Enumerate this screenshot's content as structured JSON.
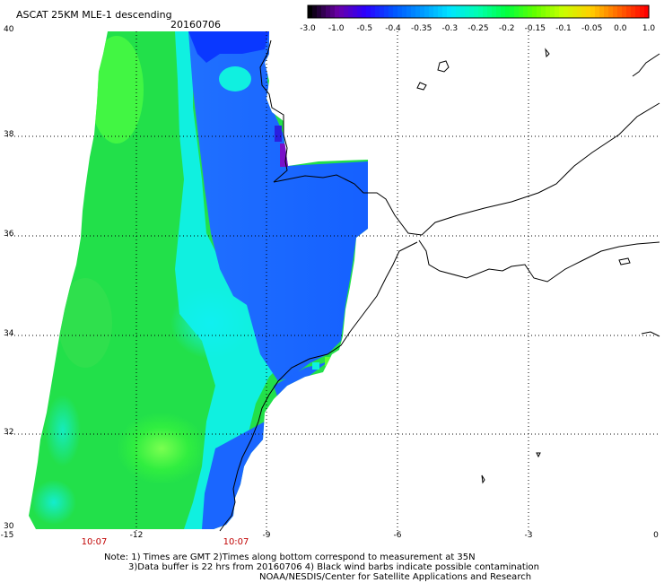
{
  "header": {
    "title": "ASCAT 25KM MLE-1 descending",
    "date": "20160706"
  },
  "colorbar": {
    "labels": [
      "-3.0",
      "-1.0",
      "-0.5",
      "-0.4",
      "-0.35",
      "-0.3",
      "-0.25",
      "-0.2",
      "-0.15",
      "-0.1",
      "-0.05",
      "0.0",
      "1.0"
    ],
    "colors": [
      "#000000",
      "#6a00a8",
      "#2a00ff",
      "#0055ff",
      "#0099ff",
      "#00e5ff",
      "#00ffb0",
      "#00ff40",
      "#60ff00",
      "#c8ff00",
      "#ffd000",
      "#ff6600",
      "#ff0000"
    ]
  },
  "axes": {
    "lat_labels": [
      "40",
      "38",
      "36",
      "34",
      "32",
      "30"
    ],
    "lon_labels": [
      "-15",
      "-12",
      "-9",
      "-6",
      "-3",
      "0"
    ]
  },
  "times": {
    "left": "10:07",
    "right": "10:07"
  },
  "notes": {
    "line1": "Note: 1) Times are GMT 2)Times along bottom correspond to measurement at 35N",
    "line2": "3)Data buffer is 22 hrs from 20160706 4) Black wind barbs indicate possible contamination",
    "line3": "NOAA/NESDIS/Center for Satellite Applications and Research"
  },
  "map_colors": {
    "green": "#22e04a",
    "cyan": "#10f0e0",
    "blue": "#1a66ff",
    "deep_blue": "#0a38ff",
    "purple": "#7a10c8"
  }
}
